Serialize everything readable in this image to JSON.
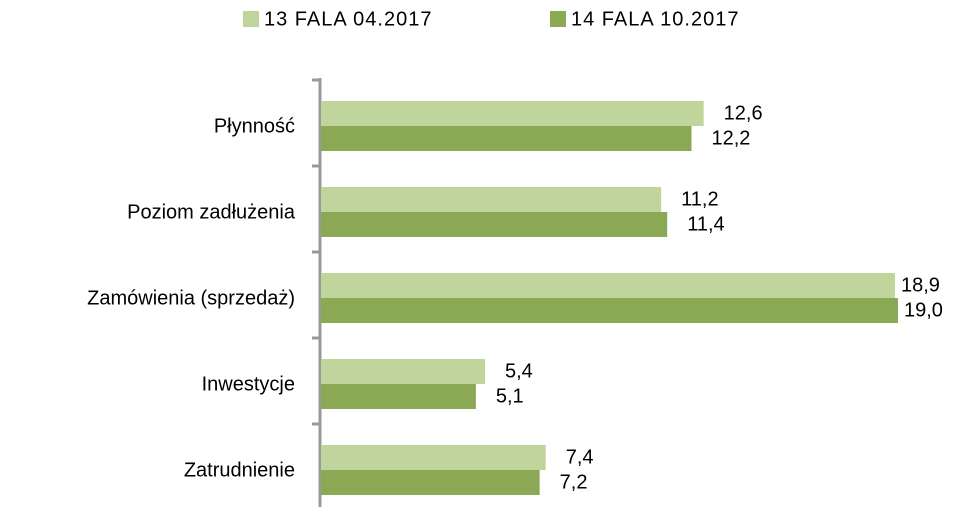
{
  "chart_data": {
    "type": "bar",
    "orientation": "horizontal",
    "categories": [
      "Płynność",
      "Poziom zadłużenia",
      "Zamówienia (sprzedaż)",
      "Inwestycje",
      "Zatrudnienie"
    ],
    "series": [
      {
        "name": "13 FALA 04.2017",
        "color": "#c0d59c",
        "values": [
          12.6,
          11.2,
          18.9,
          5.4,
          7.4
        ],
        "value_labels": [
          "12,6",
          "11,2",
          "18,9",
          "5,4",
          "7,4"
        ]
      },
      {
        "name": "14 FALA 10.2017",
        "color": "#8ba955",
        "values": [
          12.2,
          11.4,
          19.0,
          5.1,
          7.2
        ],
        "value_labels": [
          "12,2",
          "11,4",
          "19,0",
          "5,1",
          "7,2"
        ]
      }
    ],
    "xlim": [
      0,
      19
    ],
    "legend": "top"
  }
}
